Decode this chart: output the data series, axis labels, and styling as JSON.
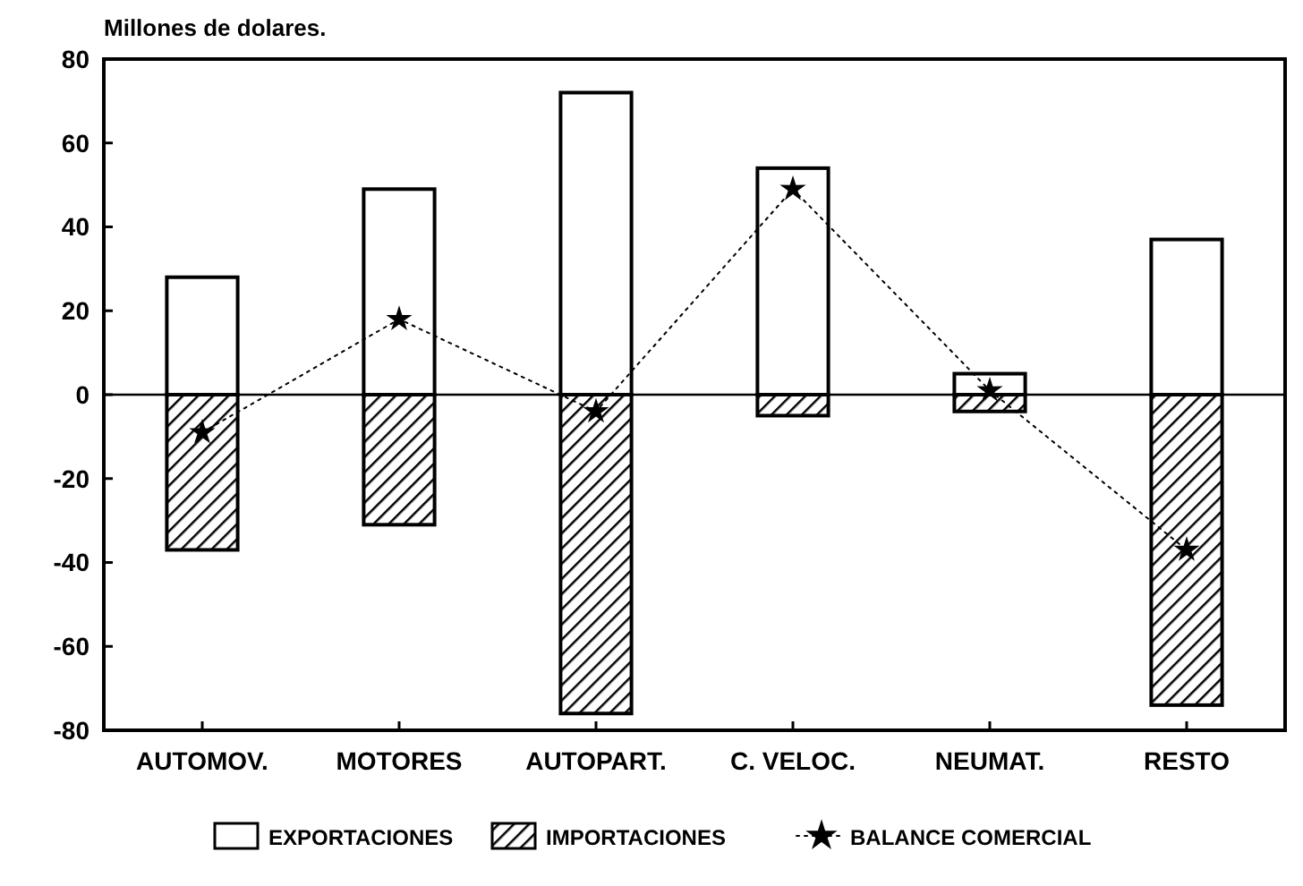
{
  "chart_data": {
    "type": "bar",
    "ylabel": "Millones de dolares.",
    "categories": [
      "AUTOMOV.",
      "MOTORES",
      "AUTOPART.",
      "C. VELOC.",
      "NEUMAT.",
      "RESTO"
    ],
    "stacked": true,
    "series": [
      {
        "name": "EXPORTACIONES",
        "color": "#ffffff",
        "values": [
          28,
          49,
          72,
          54,
          5,
          37
        ]
      },
      {
        "name": "IMPORTACIONES",
        "color": "#000000",
        "values": [
          -37,
          -31,
          -76,
          -5,
          -4,
          -74
        ]
      },
      {
        "name": "BALANCE COMERCIAL",
        "type": "line",
        "color": "#000000",
        "line_style": "dotted",
        "marker": "star",
        "values": [
          -9,
          18,
          -4,
          49,
          1,
          -37
        ]
      }
    ],
    "ylim": [
      -80,
      80
    ],
    "yticks": [
      80,
      60,
      40,
      20,
      0,
      -20,
      -40,
      -60,
      -80
    ],
    "ref_lines": [
      {
        "axis": "y",
        "value": 0,
        "label": null
      }
    ],
    "grid": false,
    "legend": "bottom"
  }
}
